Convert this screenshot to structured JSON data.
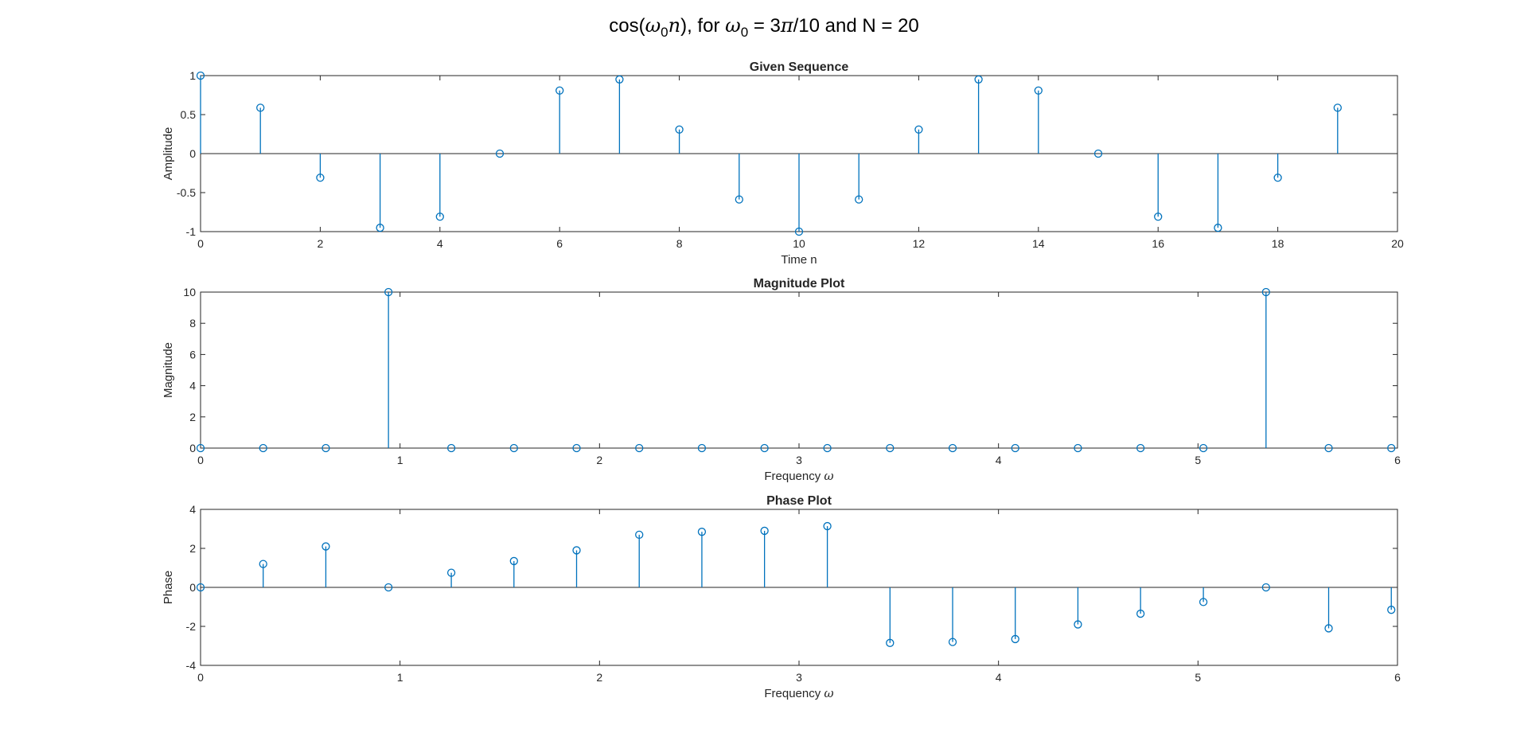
{
  "figure": {
    "title_parts": {
      "t1": "cos(",
      "t2": "ω",
      "t3": "0",
      "t4": "n",
      "t5": "), for ",
      "t6": "ω",
      "t7": "0",
      "t8": " = 3",
      "t9": "π",
      "t10": "/10 and N = 20"
    }
  },
  "chart_data": [
    {
      "type": "stem",
      "title": "Given Sequence",
      "xlabel": "Time n",
      "ylabel": "Amplitude",
      "xlim": [
        0,
        20
      ],
      "ylim": [
        -1,
        1
      ],
      "xticks": [
        0,
        2,
        4,
        6,
        8,
        10,
        12,
        14,
        16,
        18,
        20
      ],
      "yticks": [
        -1,
        -0.5,
        0,
        0.5,
        1
      ],
      "grid": false,
      "color": "#0072BD",
      "x": [
        0,
        1,
        2,
        3,
        4,
        5,
        6,
        7,
        8,
        9,
        10,
        11,
        12,
        13,
        14,
        15,
        16,
        17,
        18,
        19
      ],
      "y": [
        1,
        0.588,
        -0.309,
        -0.951,
        -0.809,
        0,
        0.809,
        0.951,
        0.309,
        -0.588,
        -1,
        -0.588,
        0.309,
        0.951,
        0.809,
        0,
        -0.809,
        -0.951,
        -0.309,
        0.588
      ]
    },
    {
      "type": "stem",
      "title": "Magnitude Plot",
      "xlabel": "Frequency ω",
      "ylabel": "Magnitude",
      "xlim": [
        0,
        6
      ],
      "ylim": [
        0,
        10
      ],
      "xticks": [
        0,
        1,
        2,
        3,
        4,
        5,
        6
      ],
      "yticks": [
        0,
        2,
        4,
        6,
        8,
        10
      ],
      "grid": false,
      "color": "#0072BD",
      "x": [
        0,
        0.314,
        0.628,
        0.942,
        1.257,
        1.571,
        1.885,
        2.199,
        2.513,
        2.827,
        3.142,
        3.456,
        3.77,
        4.084,
        4.398,
        4.712,
        5.027,
        5.341,
        5.655,
        5.969
      ],
      "y": [
        0,
        0,
        0,
        10,
        0,
        0,
        0,
        0,
        0,
        0,
        0,
        0,
        0,
        0,
        0,
        0,
        0,
        10,
        0,
        0
      ]
    },
    {
      "type": "stem",
      "title": "Phase Plot",
      "xlabel": "Frequency ω",
      "ylabel": "Phase",
      "xlim": [
        0,
        6
      ],
      "ylim": [
        -4,
        4
      ],
      "xticks": [
        0,
        1,
        2,
        3,
        4,
        5,
        6
      ],
      "yticks": [
        -4,
        -2,
        0,
        2,
        4
      ],
      "grid": false,
      "color": "#0072BD",
      "x": [
        0,
        0.314,
        0.628,
        0.942,
        1.257,
        1.571,
        1.885,
        2.199,
        2.513,
        2.827,
        3.142,
        3.456,
        3.77,
        4.084,
        4.398,
        4.712,
        5.027,
        5.341,
        5.655,
        5.969
      ],
      "y": [
        0,
        1.2,
        2.1,
        0,
        0.75,
        1.35,
        1.9,
        2.7,
        2.85,
        2.9,
        3.14,
        -2.85,
        -2.8,
        -2.65,
        -1.9,
        -1.35,
        -0.75,
        0,
        -2.1,
        -1.15
      ]
    }
  ]
}
